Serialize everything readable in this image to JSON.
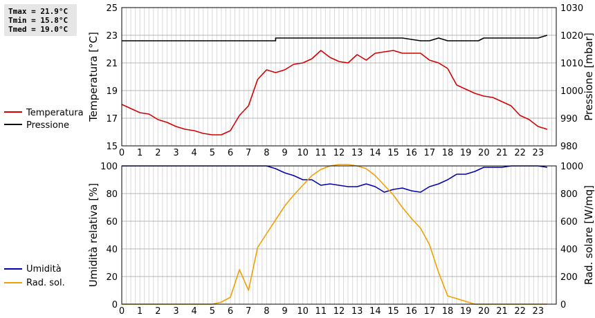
{
  "stats_box": {
    "lines": [
      "Tmax = 21.9°C",
      "Tmin = 15.8°C",
      "Tmed = 19.0°C"
    ]
  },
  "colors": {
    "temperatura": "#d40000",
    "pressione": "#000000",
    "umidita": "#0000b0",
    "radiazione": "#f0a000",
    "grid": "#d9d9d9",
    "stats_bg": "#e6e6e6"
  },
  "chart_data": [
    {
      "type": "line",
      "x_ticks": [
        0,
        1,
        2,
        3,
        4,
        5,
        6,
        7,
        8,
        9,
        10,
        11,
        12,
        13,
        14,
        15,
        16,
        17,
        18,
        19,
        20,
        21,
        22,
        23
      ],
      "xlim": [
        0,
        24
      ],
      "y_left": {
        "label": "Temperatura [°C]",
        "ylim": [
          15,
          25
        ],
        "ticks": [
          15,
          17,
          19,
          21,
          23,
          25
        ]
      },
      "y_right": {
        "label": "Pressione [mbar]",
        "ylim": [
          980,
          1030
        ],
        "ticks": [
          980,
          990,
          1000,
          1010,
          1020,
          1030
        ]
      },
      "grid": true,
      "legend": "left",
      "series": [
        {
          "name": "Temperatura",
          "axis": "left",
          "color_key": "temperatura",
          "x": [
            0,
            0.5,
            1,
            1.5,
            2,
            2.5,
            3,
            3.5,
            4,
            4.5,
            5,
            5.5,
            6,
            6.5,
            7,
            7.5,
            8,
            8.5,
            9,
            9.5,
            10,
            10.5,
            11,
            11.5,
            12,
            12.5,
            13,
            13.5,
            14,
            14.5,
            15,
            15.5,
            16,
            16.5,
            17,
            17.5,
            18,
            18.5,
            19,
            19.5,
            20,
            20.5,
            21,
            21.5,
            22,
            22.5,
            23,
            23.5
          ],
          "y": [
            18.0,
            17.7,
            17.4,
            17.3,
            16.9,
            16.7,
            16.4,
            16.2,
            16.1,
            15.9,
            15.8,
            15.8,
            16.1,
            17.2,
            17.9,
            19.8,
            20.5,
            20.3,
            20.5,
            20.9,
            21.0,
            21.3,
            21.9,
            21.4,
            21.1,
            21.0,
            21.6,
            21.2,
            21.7,
            21.8,
            21.9,
            21.7,
            21.7,
            21.7,
            21.2,
            21.0,
            20.6,
            19.4,
            19.1,
            18.8,
            18.6,
            18.5,
            18.2,
            17.9,
            17.2,
            16.9,
            16.4,
            16.2
          ]
        },
        {
          "name": "Pressione",
          "axis": "right",
          "color_key": "pressione",
          "x": [
            0,
            8.5,
            8.5,
            15,
            15.5,
            16.5,
            17,
            17.5,
            18,
            18.5,
            19,
            19.5,
            19.7,
            20,
            20.5,
            23,
            23.5
          ],
          "y": [
            1018,
            1018,
            1019,
            1019,
            1019,
            1018,
            1018,
            1019,
            1018,
            1018,
            1018,
            1018,
            1018,
            1019,
            1019,
            1019,
            1020
          ]
        }
      ]
    },
    {
      "type": "line",
      "x_ticks": [
        0,
        1,
        2,
        3,
        4,
        5,
        6,
        7,
        8,
        9,
        10,
        11,
        12,
        13,
        14,
        15,
        16,
        17,
        18,
        19,
        20,
        21,
        22,
        23
      ],
      "xlim": [
        0,
        24
      ],
      "y_left": {
        "label": "Umidità relativa [%]",
        "ylim": [
          0,
          100
        ],
        "ticks": [
          0,
          20,
          40,
          60,
          80,
          100
        ]
      },
      "y_right": {
        "label": "Rad. solare [W/mq]",
        "ylim": [
          0,
          1000
        ],
        "ticks": [
          0,
          200,
          400,
          600,
          800,
          1000
        ]
      },
      "grid": true,
      "legend": "left",
      "series": [
        {
          "name": "Umidità",
          "axis": "left",
          "color_key": "umidita",
          "x": [
            0,
            8,
            8.5,
            9,
            9.5,
            10,
            10.5,
            11,
            11.5,
            12,
            12.5,
            13,
            13.5,
            14,
            14.5,
            15,
            15.5,
            16,
            16.5,
            17,
            17.5,
            18,
            18.5,
            19,
            19.5,
            20,
            20.5,
            21,
            21.5,
            22,
            22.5,
            23,
            23.5
          ],
          "y": [
            100,
            100,
            98,
            95,
            93,
            90,
            90,
            86,
            87,
            86,
            85,
            85,
            87,
            85,
            81,
            83,
            84,
            82,
            81,
            85,
            87,
            90,
            94,
            94,
            96,
            99,
            99,
            99,
            100,
            100,
            100,
            100,
            99
          ]
        },
        {
          "name": "Rad. sol.",
          "axis": "right",
          "color_key": "radiazione",
          "x": [
            0,
            5,
            5.5,
            6,
            6.5,
            7,
            7.5,
            8,
            8.5,
            9,
            9.5,
            10,
            10.5,
            11,
            11.5,
            12,
            12.5,
            13,
            13.5,
            14,
            14.5,
            15,
            15.5,
            16,
            16.5,
            17,
            17.5,
            18,
            18.5,
            19,
            19.5,
            20,
            23.5
          ],
          "y": [
            0,
            0,
            15,
            50,
            250,
            100,
            410,
            510,
            610,
            710,
            790,
            860,
            930,
            975,
            1000,
            1010,
            1010,
            1000,
            980,
            930,
            860,
            790,
            700,
            620,
            550,
            430,
            230,
            60,
            40,
            20,
            0,
            0,
            0
          ]
        }
      ]
    }
  ]
}
